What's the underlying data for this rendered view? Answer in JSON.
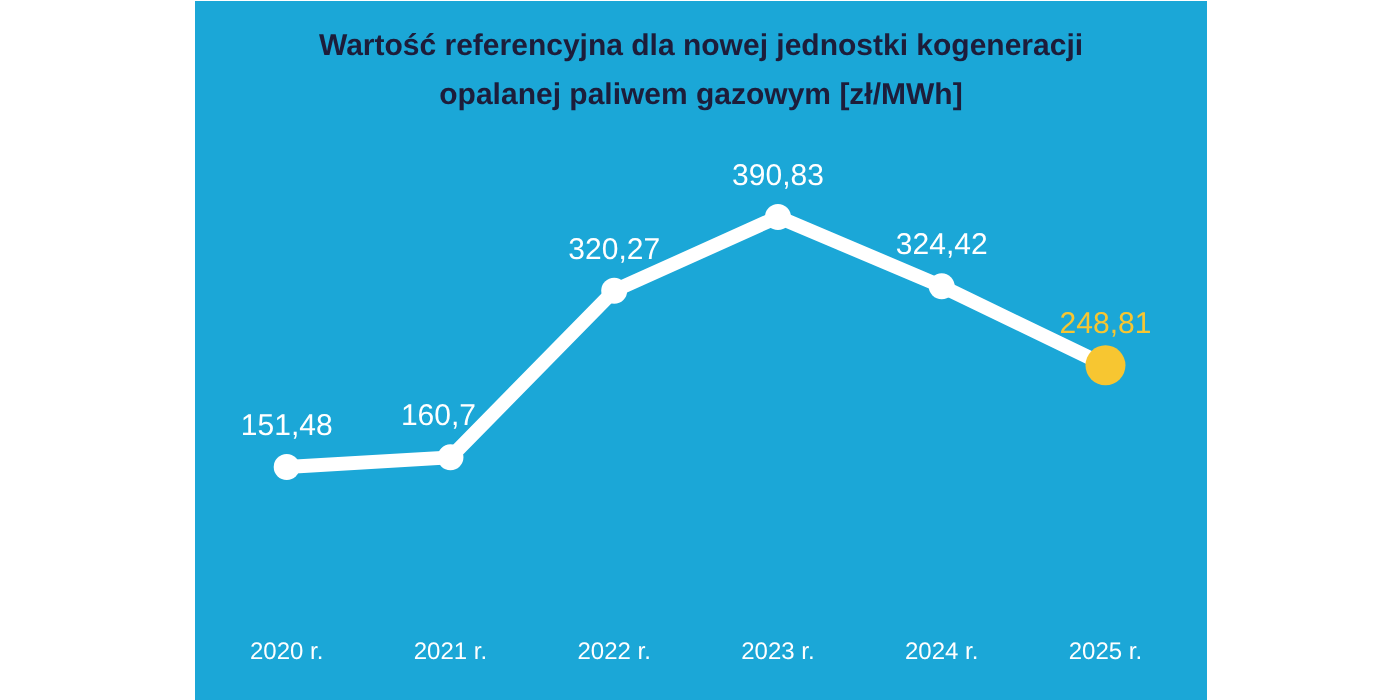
{
  "chart_data": {
    "type": "line",
    "title": "Wartość referencyjna dla nowej jednostki kogeneracji\nopalanej paliwem gazowym [zł/MWh]",
    "categories": [
      "2020 r.",
      "2021 r.",
      "2022 r.",
      "2023 r.",
      "2024 r.",
      "2025 r."
    ],
    "series": [
      {
        "color": "#ffffff",
        "colors": [
          "#ffffff",
          "#ffffff",
          "#ffffff",
          "#ffffff",
          "#ffffff",
          "#f7c631"
        ],
        "values": [
          151.48,
          160.7,
          320.27,
          390.83,
          324.42,
          248.81
        ],
        "value_labels": [
          "151,48",
          "160,7",
          "320,27",
          "390,83",
          "324,42",
          "248,81"
        ]
      }
    ],
    "marker": "circle"
  }
}
